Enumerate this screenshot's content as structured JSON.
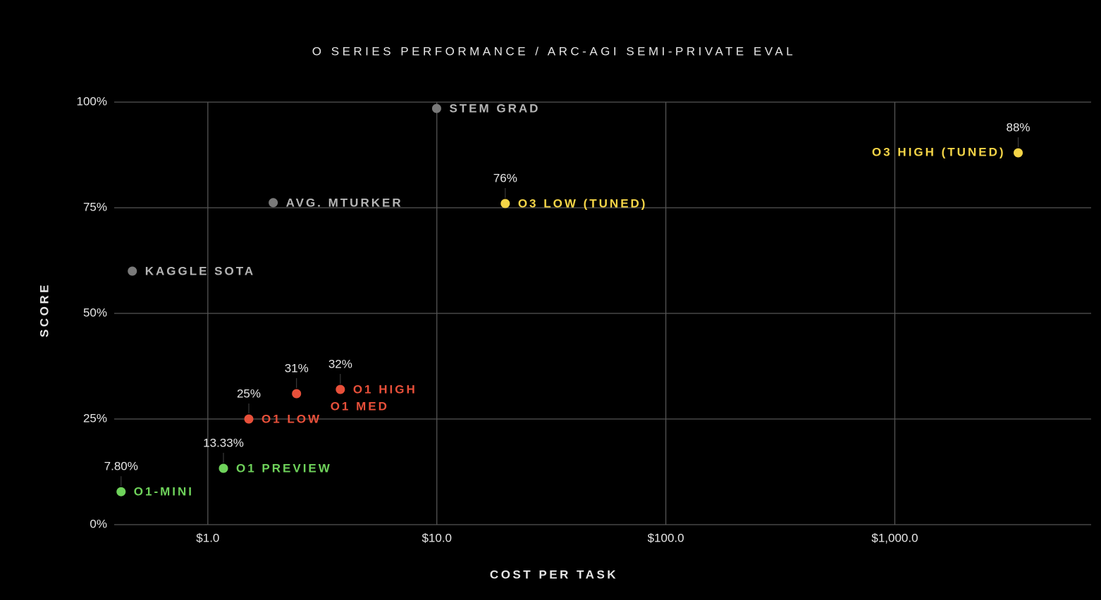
{
  "chart_data": {
    "type": "scatter",
    "title": "O SERIES PERFORMANCE / ARC-AGI SEMI-PRIVATE EVAL",
    "x_label": "COST PER TASK",
    "y_label": "SCORE",
    "log_x": true,
    "grid": true,
    "xlim": [
      0.39,
      7200
    ],
    "ylim": [
      0,
      100
    ],
    "xticks": [
      {
        "value": 1,
        "label": "$1.0"
      },
      {
        "value": 10,
        "label": "$10.0"
      },
      {
        "value": 100,
        "label": "$100.0"
      },
      {
        "value": 1000,
        "label": "$1,000.0"
      }
    ],
    "yticks": [
      {
        "value": 0,
        "label": "0%"
      },
      {
        "value": 25,
        "label": "25%"
      },
      {
        "value": 50,
        "label": "50%"
      },
      {
        "value": 75,
        "label": "75%"
      },
      {
        "value": 100,
        "label": "100%"
      }
    ],
    "series": [
      {
        "color": "#7a7a7a",
        "labels": [
          "KAGGLE SOTA",
          "AVG. MTURKER",
          "STEM GRAD"
        ],
        "x": [
          0.468,
          1.93,
          9.98
        ],
        "values": [
          60,
          76.2,
          98.5
        ]
      },
      {
        "color": "#6fd35b",
        "labels": [
          "O1-MINI",
          "O1 PREVIEW"
        ],
        "x": [
          0.418,
          1.17
        ],
        "values": [
          7.8,
          13.33
        ],
        "value_labels": [
          "7.80%",
          "13.33%"
        ]
      },
      {
        "color": "#e8503a",
        "labels": [
          "O1 LOW",
          "O1 MED",
          "O1 HIGH"
        ],
        "x": [
          1.51,
          2.44,
          3.79
        ],
        "values": [
          25,
          31,
          32
        ],
        "value_labels": [
          "25%",
          "31%",
          "32%"
        ]
      },
      {
        "color": "#f5d547",
        "labels": [
          "O3 LOW (TUNED)",
          "O3 HIGH (TUNED)"
        ],
        "x": [
          19.9,
          3458
        ],
        "values": [
          76,
          88
        ],
        "value_labels": [
          "76%",
          "88%"
        ]
      }
    ]
  }
}
